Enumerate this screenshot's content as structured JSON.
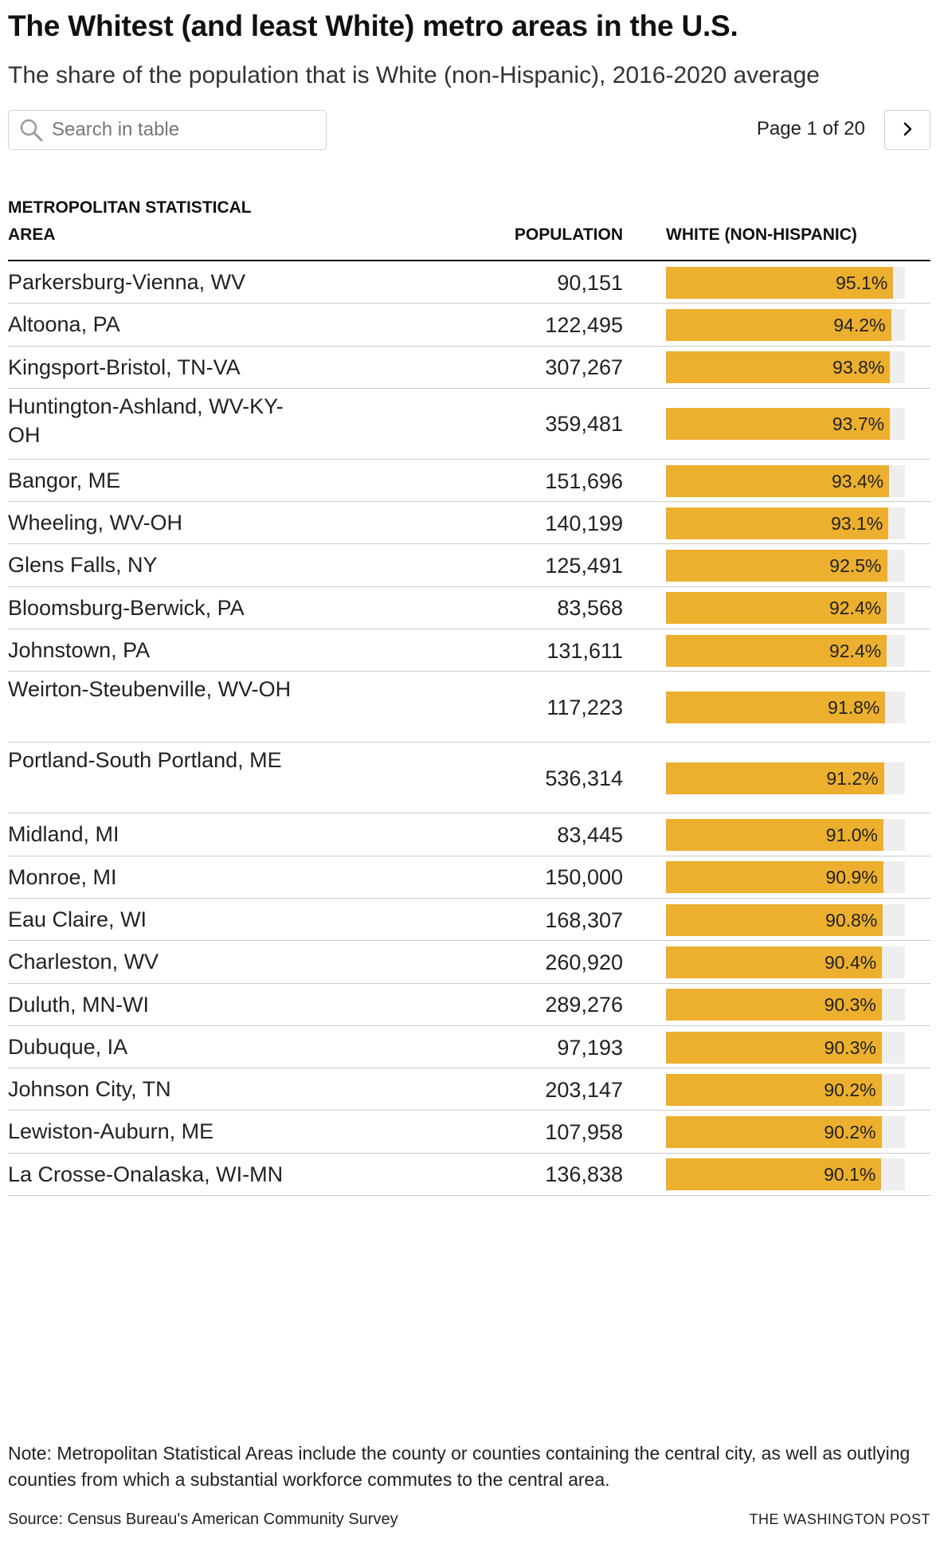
{
  "header": {
    "title": "The Whitest (and least White) metro areas in the U.S.",
    "subtitle": "The share of the population that is White (non-Hispanic), 2016-2020 average"
  },
  "search": {
    "placeholder": "Search in table",
    "value": "",
    "icon": "search-icon"
  },
  "pager": {
    "label": "Page 1 of 20",
    "next_icon": "chevron-right-icon"
  },
  "colors": {
    "bar": "#ecaf2e",
    "track": "#eeeeee"
  },
  "chart_data": {
    "type": "table",
    "title": "The Whitest (and least White) metro areas in the U.S.",
    "subtitle": "The share of the population that is White (non-Hispanic), 2016-2020 average",
    "columns": [
      "Metropolitan Statistical Area",
      "Population",
      "White (non-Hispanic)"
    ],
    "bar_max_percent": 100,
    "rows": [
      {
        "area": "Parkersburg-Vienna, WV",
        "population": "90,151",
        "white_pct": 95.1,
        "white_label": "95.1%"
      },
      {
        "area": "Altoona, PA",
        "population": "122,495",
        "white_pct": 94.2,
        "white_label": "94.2%"
      },
      {
        "area": "Kingsport-Bristol, TN-VA",
        "population": "307,267",
        "white_pct": 93.8,
        "white_label": "93.8%"
      },
      {
        "area": "Huntington-Ashland, WV-KY-OH",
        "population": "359,481",
        "white_pct": 93.7,
        "white_label": "93.7%"
      },
      {
        "area": "Bangor, ME",
        "population": "151,696",
        "white_pct": 93.4,
        "white_label": "93.4%"
      },
      {
        "area": "Wheeling, WV-OH",
        "population": "140,199",
        "white_pct": 93.1,
        "white_label": "93.1%"
      },
      {
        "area": "Glens Falls, NY",
        "population": "125,491",
        "white_pct": 92.5,
        "white_label": "92.5%"
      },
      {
        "area": "Bloomsburg-Berwick, PA",
        "population": "83,568",
        "white_pct": 92.4,
        "white_label": "92.4%"
      },
      {
        "area": "Johnstown, PA",
        "population": "131,611",
        "white_pct": 92.4,
        "white_label": "92.4%"
      },
      {
        "area": "Weirton-Steubenville, WV-OH",
        "population": "117,223",
        "white_pct": 91.8,
        "white_label": "91.8%"
      },
      {
        "area": "Portland-South Portland, ME",
        "population": "536,314",
        "white_pct": 91.2,
        "white_label": "91.2%"
      },
      {
        "area": "Midland, MI",
        "population": "83,445",
        "white_pct": 91.0,
        "white_label": "91.0%"
      },
      {
        "area": "Monroe, MI",
        "population": "150,000",
        "white_pct": 90.9,
        "white_label": "90.9%"
      },
      {
        "area": "Eau Claire, WI",
        "population": "168,307",
        "white_pct": 90.8,
        "white_label": "90.8%"
      },
      {
        "area": "Charleston, WV",
        "population": "260,920",
        "white_pct": 90.4,
        "white_label": "90.4%"
      },
      {
        "area": "Duluth, MN-WI",
        "population": "289,276",
        "white_pct": 90.3,
        "white_label": "90.3%"
      },
      {
        "area": "Dubuque, IA",
        "population": "97,193",
        "white_pct": 90.3,
        "white_label": "90.3%"
      },
      {
        "area": "Johnson City, TN",
        "population": "203,147",
        "white_pct": 90.2,
        "white_label": "90.2%"
      },
      {
        "area": "Lewiston-Auburn, ME",
        "population": "107,958",
        "white_pct": 90.2,
        "white_label": "90.2%"
      },
      {
        "area": "La Crosse-Onalaska, WI-MN",
        "population": "136,838",
        "white_pct": 90.1,
        "white_label": "90.1%"
      }
    ]
  },
  "footer": {
    "note": "Note: Metropolitan Statistical Areas include the county or counties containing the central city, as well as outlying counties from which a substantial workforce commutes to the central area.",
    "source": "Source: Census Bureau's American Community Survey",
    "credit": "THE WASHINGTON POST"
  }
}
